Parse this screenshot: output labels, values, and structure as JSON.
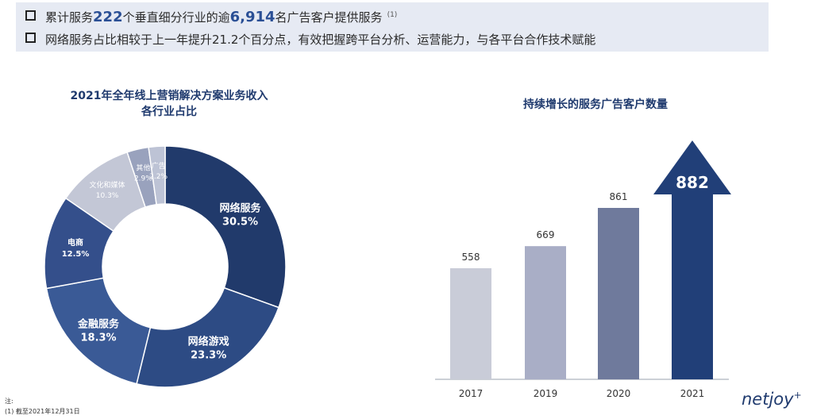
{
  "header": {
    "line1": {
      "prefix": "累计服务",
      "verticals": "222",
      "mid": "个垂直细分行业的逾",
      "clients": "6,914",
      "suffix": "名广告客户提供服务",
      "note_ref": "(1)"
    },
    "line2": "网络服务占比相较于上一年提升21.2个百分点，有效把握跨平台分析、运营能力，与各平台合作技术赋能"
  },
  "chart_data": [
    {
      "type": "pie",
      "donut": true,
      "title": "2021年全年线上营销解决方案业务收入各行业占比",
      "title_lines": [
        "2021年全年线上营销解决方案业务收入",
        "各行业占比"
      ],
      "slices": [
        {
          "name": "网络服务",
          "value": 30.5,
          "label": "30.5%",
          "color": "#213a6b"
        },
        {
          "name": "网络游戏",
          "value": 23.3,
          "label": "23.3%",
          "color": "#2d4b84"
        },
        {
          "name": "金融服务",
          "value": 18.3,
          "label": "18.3%",
          "color": "#3a5a96"
        },
        {
          "name": "电商",
          "value": 12.5,
          "label": "12.5%",
          "color": "#344f8b"
        },
        {
          "name": "文化和媒体",
          "value": 10.3,
          "label": "10.3%",
          "color": "#c3c7d6"
        },
        {
          "name": "其他",
          "value": 2.9,
          "label": "2.9%",
          "color": "#99a2bd"
        },
        {
          "name": "广告",
          "value": 2.2,
          "label": "2.2%",
          "color": "#bdc3d5"
        }
      ]
    },
    {
      "type": "bar",
      "title": "持续增长的服务广告客户数量",
      "categories": [
        "2017",
        "2019",
        "2020",
        "2021"
      ],
      "values": [
        558,
        669,
        861,
        882
      ],
      "colors": [
        "#c9ccd8",
        "#a9aec6",
        "#6f7a9c",
        "#213f78"
      ],
      "last_as_arrow": true
    }
  ],
  "footnotes": {
    "label": "注:",
    "items": [
      "(1)  截至2021年12月31日"
    ]
  },
  "logo": {
    "text": "netjoy",
    "mark": "+"
  }
}
